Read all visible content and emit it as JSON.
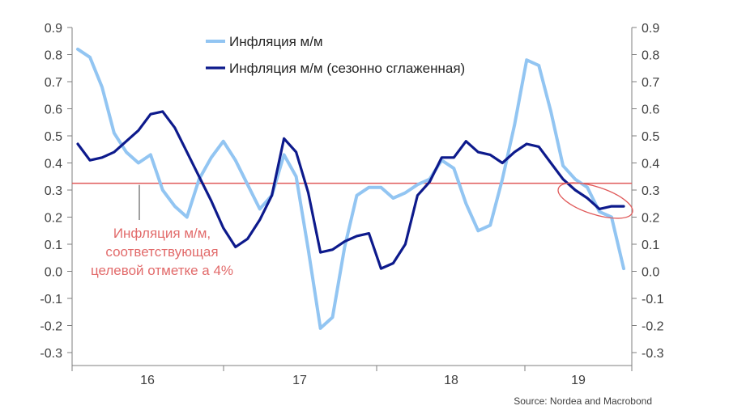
{
  "chart_data": {
    "type": "line",
    "x_period_labels": [
      "16",
      "17",
      "18",
      "19"
    ],
    "y_ticks": [
      "0.9",
      "0.8",
      "0.7",
      "0.6",
      "0.5",
      "0.4",
      "0.3",
      "0.2",
      "0.1",
      "0.0",
      "-0.1",
      "-0.2",
      "-0.3"
    ],
    "ylim": [
      -0.3,
      0.9
    ],
    "grid": false,
    "legend_position": "top-center",
    "series": [
      {
        "name": "Инфляция м/м",
        "color": "#92c5f2",
        "values": [
          0.82,
          0.79,
          0.68,
          0.51,
          0.44,
          0.4,
          0.43,
          0.3,
          0.24,
          0.2,
          0.34,
          0.42,
          0.48,
          0.41,
          0.32,
          0.23,
          0.28,
          0.43,
          0.35,
          0.08,
          -0.21,
          -0.17,
          0.09,
          0.28,
          0.31,
          0.31,
          0.27,
          0.29,
          0.32,
          0.34,
          0.41,
          0.38,
          0.25,
          0.15,
          0.17,
          0.34,
          0.54,
          0.78,
          0.76,
          0.59,
          0.39,
          0.34,
          0.31,
          0.22,
          0.2,
          0.01
        ]
      },
      {
        "name": "Инфляция м/м (сезонно сглаженная)",
        "color": "#0d1a8c",
        "values": [
          0.47,
          0.41,
          0.42,
          0.44,
          0.48,
          0.52,
          0.58,
          0.59,
          0.53,
          0.44,
          0.35,
          0.26,
          0.16,
          0.09,
          0.12,
          0.19,
          0.28,
          0.49,
          0.44,
          0.29,
          0.07,
          0.08,
          0.11,
          0.13,
          0.14,
          0.01,
          0.03,
          0.1,
          0.28,
          0.33,
          0.42,
          0.42,
          0.48,
          0.44,
          0.43,
          0.4,
          0.44,
          0.47,
          0.46,
          0.4,
          0.34,
          0.3,
          0.27,
          0.23,
          0.24,
          0.24
        ]
      }
    ],
    "reference_line": {
      "value": 0.325,
      "color": "#e05a5a"
    },
    "annotation": "Инфляция м/м,\nсоответствующая\nцелевой отметке а 4%",
    "annotation_lines": [
      "Инфляция м/м,",
      "соответствующая",
      "целевой отметке а 4%"
    ],
    "source": "Source: Nordea and Macrobond"
  }
}
